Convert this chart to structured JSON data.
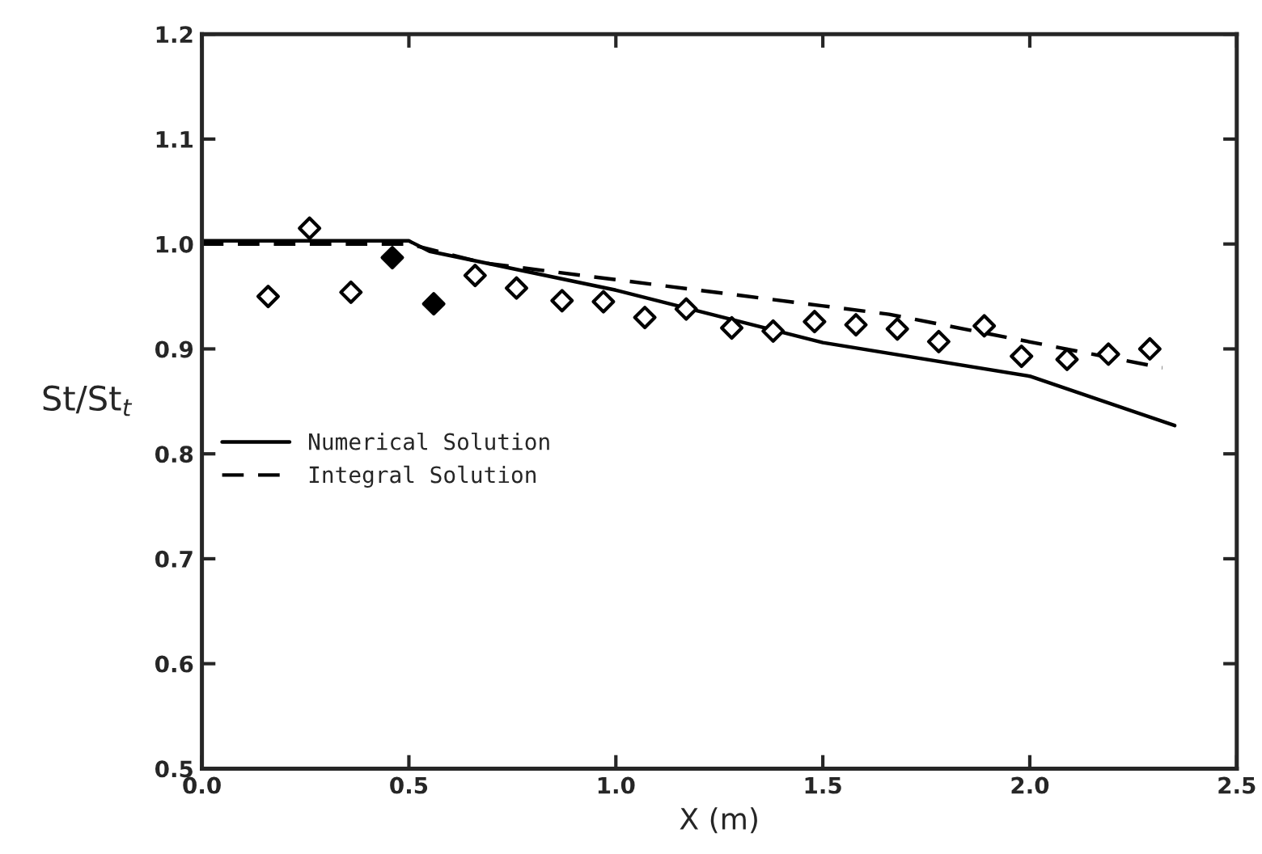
{
  "chart_data": {
    "type": "line",
    "xlabel": "X (m)",
    "ylabel": "St/St$_{t}$",
    "xlim": [
      0.0,
      2.5
    ],
    "ylim": [
      0.5,
      1.2
    ],
    "xticks": [
      {
        "value": 0,
        "label": "0.0"
      },
      0.5,
      {
        "value": 1,
        "label": "1.0"
      },
      1.5,
      {
        "value": 2,
        "label": "2.0"
      },
      2.5
    ],
    "yticks": [
      0.5,
      0.6,
      0.7,
      0.8,
      0.9,
      {
        "value": 1,
        "label": "1.0"
      },
      1.1,
      1.2
    ],
    "grid": false,
    "legend": "left",
    "series": [
      {
        "name": "Numerical Solution",
        "line_style": "solid",
        "color": "#000000",
        "x": [
          0.0,
          0.5,
          0.55,
          1.0,
          1.5,
          2.0,
          2.35
        ],
        "values": [
          1.003,
          1.003,
          0.993,
          0.956,
          0.906,
          0.874,
          0.827
        ]
      },
      {
        "name": "Integral Solution",
        "line_style": "dashed",
        "color": "#000000",
        "x": [
          0.0,
          0.5,
          0.68,
          1.66,
          2.32
        ],
        "values": [
          1.0,
          1.0,
          0.982,
          0.933,
          0.882
        ]
      },
      {
        "type": "scatter",
        "marker": "diamond",
        "color": "#000000",
        "colors": [
          "#ffffff",
          "#ffffff",
          "#ffffff",
          "#ffffff",
          "#ffffff",
          "#ffffff",
          "#ffffff",
          "#ffffff",
          "#ffffff",
          "#ffffff",
          "#ffffff",
          "#ffffff",
          "#ffffff",
          "#ffffff",
          "#ffffff",
          "#ffffff",
          "#ffffff",
          "#ffffff",
          "#ffffff",
          "#ffffff"
        ],
        "x": [
          0.16,
          0.26,
          0.36,
          0.66,
          0.76,
          0.87,
          0.97,
          1.07,
          1.17,
          1.28,
          1.38,
          1.48,
          1.58,
          1.68,
          1.78,
          1.89,
          1.98,
          2.09,
          2.19,
          2.29
        ],
        "values": [
          0.95,
          1.015,
          0.954,
          0.97,
          0.958,
          0.946,
          0.945,
          0.93,
          0.938,
          0.92,
          0.917,
          0.926,
          0.923,
          0.919,
          0.907,
          0.922,
          0.893,
          0.89,
          0.895,
          0.9
        ]
      },
      {
        "type": "scatter",
        "marker": "diamond",
        "color": "#000000",
        "colors": [
          "#000000",
          "#000000"
        ],
        "x": [
          0.46,
          0.56
        ],
        "values": [
          0.987,
          0.943
        ]
      }
    ]
  }
}
